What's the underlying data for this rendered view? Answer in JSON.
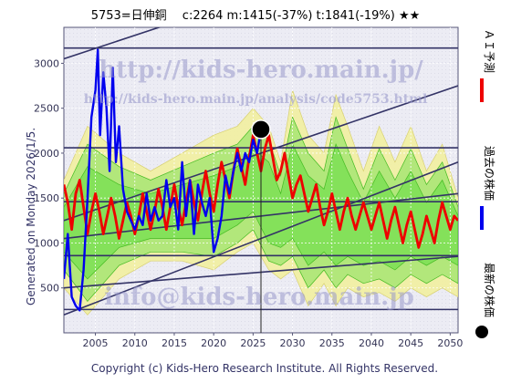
{
  "header": {
    "title": "5753=日伸銅　 c:2264  m:1415(-37%)  t:1841(-19%)  ★★"
  },
  "side_note": "Generated on Monday 2026/1/5.",
  "footer": "Copyright (c) Kids-Hero Research Institute. All Rights Reserved.",
  "watermarks": {
    "url_main": "http://kids-hero.main.jp/",
    "url_analysis": "http://kids-hero.main.jp/analysis/code5753.html",
    "email": "info@kids-hero.main.jp"
  },
  "legend": [
    {
      "label": "ＡＩ予測",
      "color": "#ee0000",
      "marker": "line"
    },
    {
      "label": "過去の株価",
      "color": "#0000ee",
      "marker": "line"
    },
    {
      "label": "最新の株価",
      "color": "#000000",
      "marker": "dot"
    }
  ],
  "colors": {
    "plot_bg": "#ececf4",
    "ai_forecast": "#ee0000",
    "past_price": "#0000ee",
    "band_green": "#66dd44",
    "band_yellow": "#f2f0a0",
    "channel": "#333366",
    "latest_dot": "#000000"
  },
  "chart_data": {
    "type": "line",
    "xlim": [
      2001,
      2051
    ],
    "ylim": [
      0,
      3400
    ],
    "x_ticks": [
      2005,
      2010,
      2015,
      2020,
      2025,
      2030,
      2035,
      2040,
      2045,
      2050
    ],
    "y_ticks": [
      500,
      1000,
      1500,
      2000,
      2500,
      3000
    ],
    "grid": true,
    "latest": {
      "x": 2026.0,
      "y": 2264
    },
    "horizontal_levels": [
      3170,
      2060,
      1460,
      860,
      260
    ],
    "channel_lines": [
      {
        "x": [
          2001,
          2051
        ],
        "y": [
          3050,
          4500
        ]
      },
      {
        "x": [
          2001,
          2051
        ],
        "y": [
          1250,
          2750
        ]
      },
      {
        "x": [
          2001,
          2051
        ],
        "y": [
          200,
          1900
        ]
      },
      {
        "x": [
          2001,
          2051
        ],
        "y": [
          1050,
          1550
        ]
      },
      {
        "x": [
          2001,
          2051
        ],
        "y": [
          500,
          850
        ]
      }
    ],
    "series": [
      {
        "name": "過去の株価",
        "x": [
          2001.0,
          2001.5,
          2002.0,
          2002.5,
          2003.0,
          2003.5,
          2004.0,
          2004.5,
          2005.0,
          2005.3,
          2005.6,
          2006.0,
          2006.4,
          2006.8,
          2007.2,
          2007.6,
          2008.0,
          2008.5,
          2009.0,
          2009.5,
          2010.0,
          2010.5,
          2011.0,
          2011.5,
          2012.0,
          2012.5,
          2013.0,
          2013.5,
          2014.0,
          2014.5,
          2015.0,
          2015.5,
          2016.0,
          2016.5,
          2017.0,
          2017.5,
          2018.0,
          2018.5,
          2019.0,
          2019.5,
          2020.0,
          2020.5,
          2021.0,
          2021.5,
          2022.0,
          2022.5,
          2023.0,
          2023.5,
          2024.0,
          2024.5,
          2025.0,
          2025.5,
          2026.0
        ],
        "y": [
          600,
          1100,
          400,
          300,
          250,
          700,
          1500,
          2400,
          2700,
          3150,
          2200,
          2900,
          2500,
          1800,
          2950,
          1900,
          2300,
          1600,
          1350,
          1250,
          1150,
          1300,
          1200,
          1550,
          1250,
          1400,
          1250,
          1300,
          1700,
          1400,
          1500,
          1150,
          1900,
          1300,
          1700,
          1100,
          1650,
          1450,
          1300,
          1500,
          900,
          1050,
          1300,
          1750,
          1550,
          1800,
          2000,
          1800,
          2000,
          1900,
          2150,
          2000,
          2264
        ]
      },
      {
        "name": "ＡＩ予測",
        "x": [
          2001.0,
          2001.5,
          2002.0,
          2002.5,
          2003.0,
          2003.5,
          2004.0,
          2004.5,
          2005.0,
          2005.5,
          2006.0,
          2006.5,
          2007.0,
          2007.5,
          2008.0,
          2008.5,
          2009.0,
          2009.5,
          2010.0,
          2010.5,
          2011.0,
          2011.5,
          2012.0,
          2012.5,
          2013.0,
          2013.5,
          2014.0,
          2014.5,
          2015.0,
          2015.5,
          2016.0,
          2016.5,
          2017.0,
          2017.5,
          2018.0,
          2018.5,
          2019.0,
          2019.5,
          2020.0,
          2020.5,
          2021.0,
          2021.5,
          2022.0,
          2022.5,
          2023.0,
          2023.5,
          2024.0,
          2024.5,
          2025.0,
          2025.5,
          2026.0,
          2026.5,
          2027.0,
          2027.5,
          2028.0,
          2028.5,
          2029.0,
          2029.5,
          2030.0,
          2030.5,
          2031.0,
          2031.5,
          2032.0,
          2032.5,
          2033.0,
          2033.5,
          2034.0,
          2034.5,
          2035.0,
          2035.5,
          2036.0,
          2036.5,
          2037.0,
          2037.5,
          2038.0,
          2038.5,
          2039.0,
          2039.5,
          2040.0,
          2040.5,
          2041.0,
          2041.5,
          2042.0,
          2042.5,
          2043.0,
          2043.5,
          2044.0,
          2044.5,
          2045.0,
          2045.5,
          2046.0,
          2046.5,
          2047.0,
          2047.5,
          2048.0,
          2048.5,
          2049.0,
          2049.5,
          2050.0,
          2050.5,
          2051.0
        ],
        "y": [
          1650,
          1450,
          1150,
          1550,
          1700,
          1400,
          1100,
          1350,
          1550,
          1350,
          1100,
          1300,
          1500,
          1300,
          1050,
          1250,
          1450,
          1300,
          1100,
          1300,
          1550,
          1350,
          1150,
          1350,
          1600,
          1400,
          1150,
          1400,
          1650,
          1400,
          1200,
          1450,
          1700,
          1450,
          1250,
          1550,
          1800,
          1550,
          1350,
          1650,
          1900,
          1700,
          1500,
          1800,
          2050,
          1850,
          1650,
          1950,
          2200,
          2000,
          1800,
          2050,
          2200,
          1950,
          1700,
          1800,
          2000,
          1750,
          1500,
          1650,
          1750,
          1550,
          1350,
          1500,
          1650,
          1400,
          1200,
          1350,
          1550,
          1350,
          1150,
          1350,
          1500,
          1300,
          1150,
          1300,
          1450,
          1300,
          1150,
          1300,
          1450,
          1250,
          1050,
          1250,
          1400,
          1200,
          1000,
          1200,
          1350,
          1150,
          950,
          1100,
          1300,
          1150,
          1000,
          1250,
          1450,
          1300,
          1150,
          1300,
          1250
        ]
      }
    ],
    "bands": [
      {
        "name": "band-yellow",
        "x": [
          2001,
          2004,
          2008,
          2012,
          2016,
          2020,
          2023,
          2025,
          2027,
          2028.5,
          2030,
          2032,
          2034,
          2035.5,
          2037,
          2039,
          2041,
          2043,
          2045,
          2047,
          2049,
          2051
        ],
        "upper": [
          1700,
          2300,
          2000,
          1800,
          2000,
          2200,
          2300,
          2500,
          2300,
          1900,
          2700,
          2200,
          2000,
          2650,
          2300,
          1800,
          2300,
          1900,
          2300,
          1800,
          2100,
          1500
        ],
        "lower": [
          500,
          200,
          600,
          800,
          800,
          700,
          900,
          1000,
          700,
          600,
          700,
          300,
          550,
          300,
          500,
          400,
          450,
          350,
          500,
          400,
          500,
          400
        ]
      },
      {
        "name": "band-green-outer",
        "x": [
          2001,
          2004,
          2008,
          2012,
          2016,
          2020,
          2023,
          2025,
          2027,
          2028.5,
          2030,
          2032,
          2034,
          2035.5,
          2037,
          2039,
          2041,
          2043,
          2045,
          2047,
          2049,
          2051
        ],
        "upper": [
          1550,
          2100,
          1850,
          1700,
          1850,
          2000,
          2100,
          2300,
          2150,
          1750,
          2400,
          2000,
          1800,
          2400,
          2050,
          1600,
          2050,
          1700,
          2050,
          1650,
          1900,
          1400
        ],
        "lower": [
          700,
          350,
          750,
          900,
          900,
          850,
          1000,
          1150,
          800,
          750,
          850,
          500,
          700,
          500,
          650,
          550,
          600,
          500,
          650,
          550,
          650,
          550
        ]
      },
      {
        "name": "band-green-inner",
        "x": [
          2001,
          2004,
          2008,
          2012,
          2016,
          2020,
          2023,
          2025,
          2027,
          2028.5,
          2030,
          2032,
          2034,
          2035.5,
          2037,
          2039,
          2041,
          2043,
          2045,
          2047,
          2049,
          2051
        ],
        "upper": [
          1400,
          1850,
          1650,
          1550,
          1650,
          1750,
          1850,
          2050,
          1900,
          1550,
          2100,
          1750,
          1600,
          2100,
          1800,
          1450,
          1800,
          1500,
          1800,
          1450,
          1700,
          1300
        ],
        "lower": [
          900,
          600,
          950,
          1050,
          1050,
          1050,
          1200,
          1350,
          1000,
          950,
          1050,
          750,
          900,
          750,
          850,
          750,
          800,
          700,
          850,
          750,
          850,
          750
        ]
      }
    ]
  }
}
